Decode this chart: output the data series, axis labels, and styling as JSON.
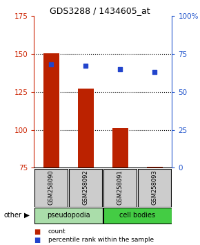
{
  "title": "GDS3288 / 1434605_at",
  "samples": [
    "GSM258090",
    "GSM258092",
    "GSM258091",
    "GSM258093"
  ],
  "bar_values": [
    150.5,
    127.0,
    101.0,
    75.5
  ],
  "percentile_values": [
    68,
    67,
    65,
    63
  ],
  "bar_color": "#bb2200",
  "dot_color": "#2244cc",
  "ylim_left": [
    75,
    175
  ],
  "ylim_right": [
    0,
    100
  ],
  "yticks_left": [
    75,
    100,
    125,
    150,
    175
  ],
  "yticks_right": [
    0,
    25,
    50,
    75,
    100
  ],
  "ytick_labels_right": [
    "0",
    "25",
    "50",
    "75",
    "100%"
  ],
  "groups": [
    {
      "label": "pseudopodia",
      "color": "#aaddaa",
      "samples": [
        0,
        1
      ]
    },
    {
      "label": "cell bodies",
      "color": "#44cc44",
      "samples": [
        2,
        3
      ]
    }
  ],
  "bar_baseline": 75,
  "sample_label_bg": "#cccccc",
  "grid_linestyle": "dotted",
  "grid_yticks": [
    100,
    125,
    150
  ],
  "left_color": "#cc2200",
  "right_color": "#2255cc"
}
